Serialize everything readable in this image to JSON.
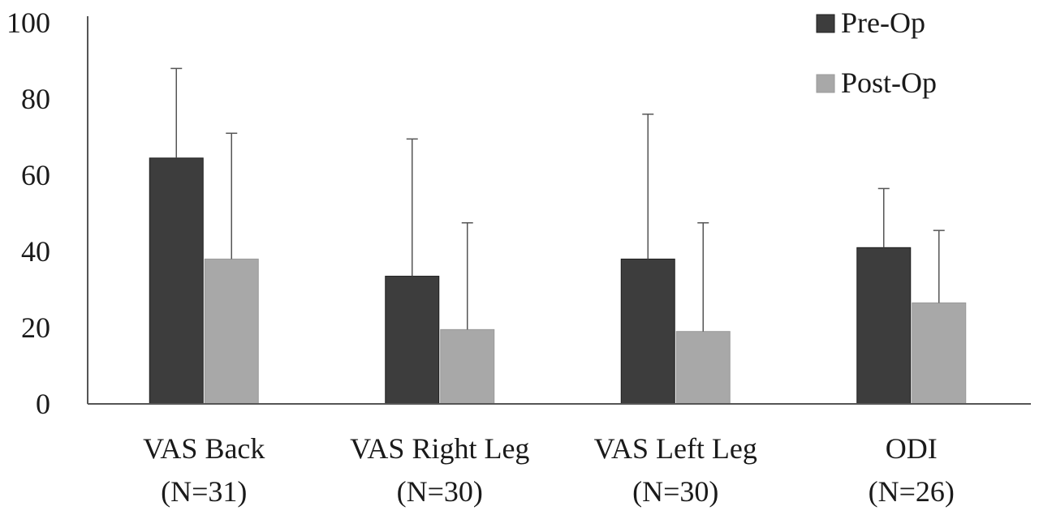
{
  "chart_data": {
    "type": "bar",
    "title": "",
    "xlabel": "",
    "ylabel": "",
    "ylim": [
      0,
      100
    ],
    "yticks": [
      0,
      20,
      40,
      60,
      80,
      100
    ],
    "grid": false,
    "legend_position": "top-right",
    "categories": [
      {
        "line1": "VAS Back",
        "line2": "(N=31)"
      },
      {
        "line1": "VAS Right Leg",
        "line2": "(N=30)"
      },
      {
        "line1": "VAS Left Leg",
        "line2": "(N=30)"
      },
      {
        "line1": "ODI",
        "line2": "(N=26)"
      }
    ],
    "series": [
      {
        "name": "Pre-Op",
        "color": "#3d3d3d",
        "values": [
          64.5,
          33.5,
          38,
          41
        ],
        "error": [
          23.5,
          36,
          38,
          15.5
        ]
      },
      {
        "name": "Post-Op",
        "color": "#a8a8a8",
        "values": [
          38,
          19.5,
          19,
          26.5
        ],
        "error": [
          33,
          28,
          28.5,
          19
        ]
      }
    ],
    "error_bars": "upper"
  }
}
